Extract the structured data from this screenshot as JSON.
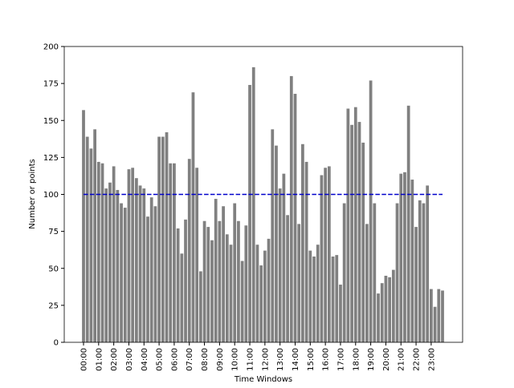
{
  "chart_data": {
    "type": "bar",
    "xlabel": "Time Windows",
    "ylabel": "Number or points",
    "categories": [
      "00:00",
      null,
      null,
      null,
      "01:00",
      null,
      null,
      null,
      "02:00",
      null,
      null,
      null,
      "03:00",
      null,
      null,
      null,
      "04:00",
      null,
      null,
      null,
      "05:00",
      null,
      null,
      null,
      "06:00",
      null,
      null,
      null,
      "07:00",
      null,
      null,
      null,
      "08:00",
      null,
      null,
      null,
      "09:00",
      null,
      null,
      null,
      "10:00",
      null,
      null,
      null,
      "11:00",
      null,
      null,
      null,
      "12:00",
      null,
      null,
      null,
      "13:00",
      null,
      null,
      null,
      "14:00",
      null,
      null,
      null,
      "15:00",
      null,
      null,
      null,
      "16:00",
      null,
      null,
      null,
      "17:00",
      null,
      null,
      null,
      "18:00",
      null,
      null,
      null,
      "19:00",
      null,
      null,
      null,
      "20:00",
      null,
      null,
      null,
      "21:00",
      null,
      null,
      null,
      "22:00",
      null,
      null,
      null,
      "23:00",
      null,
      null,
      null
    ],
    "values": [
      157,
      139,
      131,
      144,
      122,
      121,
      104,
      108,
      119,
      103,
      94,
      91,
      117,
      118,
      111,
      106,
      104,
      85,
      98,
      92,
      139,
      139,
      142,
      121,
      121,
      77,
      60,
      83,
      124,
      169,
      118,
      48,
      82,
      78,
      69,
      97,
      82,
      92,
      73,
      66,
      94,
      82,
      55,
      79,
      174,
      186,
      66,
      52,
      62,
      70,
      144,
      133,
      104,
      114,
      86,
      180,
      168,
      80,
      134,
      122,
      62,
      58,
      66,
      113,
      118,
      119,
      58,
      59,
      39,
      94,
      158,
      147,
      159,
      149,
      135,
      80,
      177,
      94,
      33,
      40,
      45,
      44,
      49,
      94,
      114,
      115,
      160,
      110,
      78,
      96,
      94,
      106,
      36,
      24,
      36,
      35
    ],
    "color": "#808080",
    "hline": {
      "value": 100,
      "color": "#0000cc"
    },
    "ylim": [
      0,
      200
    ],
    "yticks": [
      0,
      25,
      50,
      75,
      100,
      125,
      150,
      175,
      200
    ]
  }
}
